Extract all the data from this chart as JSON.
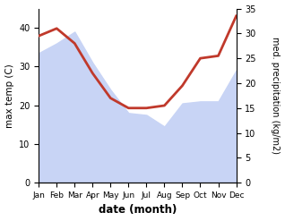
{
  "months": [
    "Jan",
    "Feb",
    "Mar",
    "Apr",
    "May",
    "Jun",
    "Jul",
    "Aug",
    "Sep",
    "Oct",
    "Nov",
    "Dec"
  ],
  "max_temp": [
    33.5,
    36.0,
    39.0,
    31.0,
    24.0,
    18.0,
    17.5,
    14.5,
    20.5,
    21.0,
    21.0,
    29.0
  ],
  "precipitation": [
    29.5,
    31.0,
    28.0,
    22.0,
    17.0,
    15.0,
    15.0,
    15.5,
    19.5,
    25.0,
    25.5,
    33.5
  ],
  "temp_fill_color": "#c8d4f5",
  "precip_color": "#c0392b",
  "left_ylabel": "max temp (C)",
  "right_ylabel": "med. precipitation (kg/m2)",
  "xlabel": "date (month)",
  "ylim_temp": [
    0,
    45
  ],
  "ylim_precip": [
    0,
    35
  ],
  "yticks_temp": [
    0,
    10,
    20,
    30,
    40
  ],
  "yticks_precip": [
    0,
    5,
    10,
    15,
    20,
    25,
    30,
    35
  ]
}
